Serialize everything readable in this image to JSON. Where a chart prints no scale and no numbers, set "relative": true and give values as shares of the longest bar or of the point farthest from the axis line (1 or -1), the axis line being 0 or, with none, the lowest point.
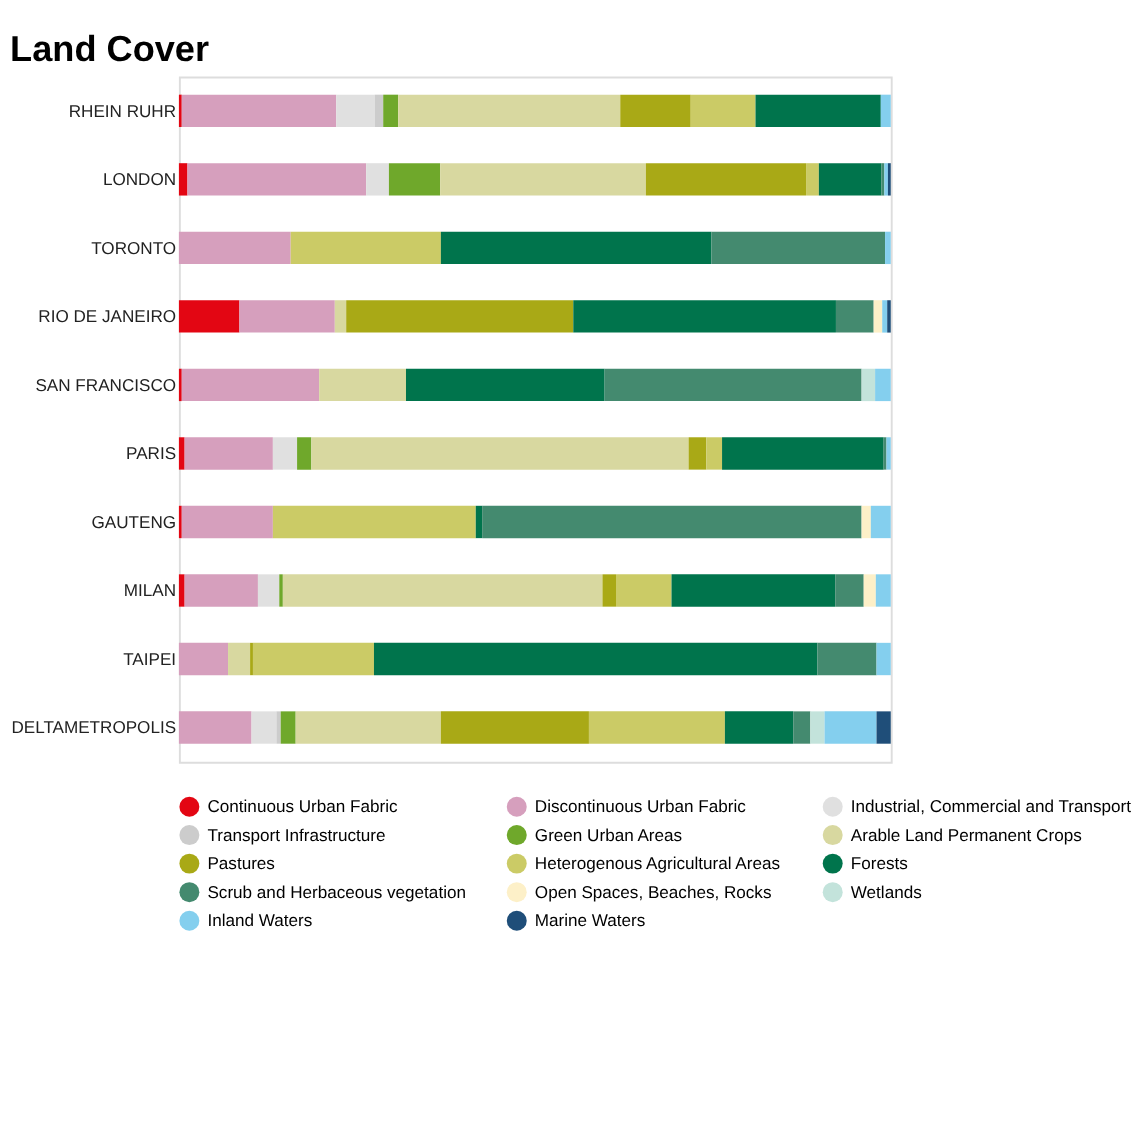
{
  "chart_data": {
    "type": "bar",
    "orientation": "horizontal",
    "stacked": true,
    "relative": true,
    "title": "Land Cover",
    "legend": "bottom",
    "grid": false,
    "marker": "circle",
    "categories": [
      "RHEIN RUHR",
      "LONDON",
      "TORONTO",
      "RIO DE JANEIRO",
      "SAN FRANCISCO",
      "PARIS",
      "GAUTENG",
      "MILAN",
      "TAIPEI",
      "DELTAMETROPOLIS"
    ],
    "series": [
      {
        "name": "Continuous Urban Fabric",
        "color": "#e30613",
        "values": [
          0.004,
          0.012,
          null,
          0.085,
          0.004,
          0.008,
          0.004,
          0.008,
          null,
          null
        ]
      },
      {
        "name": "Discontinuous Urban Fabric",
        "color": "#d69fbd",
        "values": [
          0.217,
          0.251,
          0.157,
          0.134,
          0.193,
          0.124,
          0.128,
          0.103,
          0.069,
          0.102
        ]
      },
      {
        "name": "Industrial, Commercial and Transport",
        "color": "#e0e0e0",
        "values": [
          0.054,
          0.032,
          null,
          null,
          null,
          0.034,
          null,
          0.03,
          null,
          0.035
        ]
      },
      {
        "name": "Transport Infrastructure",
        "color": "#cccccc",
        "values": [
          0.012,
          null,
          null,
          null,
          null,
          null,
          null,
          null,
          null,
          0.006
        ]
      },
      {
        "name": "Green Urban Areas",
        "color": "#6fa82b",
        "values": [
          0.021,
          0.072,
          null,
          null,
          null,
          0.02,
          null,
          0.005,
          null,
          0.021
        ]
      },
      {
        "name": "Arable Land Permanent Crops",
        "color": "#d8d8a0",
        "values": [
          0.312,
          0.289,
          null,
          0.016,
          0.122,
          0.53,
          null,
          0.449,
          0.031,
          0.204
        ]
      },
      {
        "name": "Pastures",
        "color": "#a9a916",
        "values": [
          0.099,
          0.225,
          null,
          0.319,
          null,
          0.025,
          null,
          0.019,
          0.004,
          0.208
        ]
      },
      {
        "name": "Heterogenous Agricultural Areas",
        "color": "#cbcb66",
        "values": [
          0.091,
          0.018,
          0.211,
          null,
          null,
          0.022,
          0.285,
          0.078,
          0.17,
          0.191
        ]
      },
      {
        "name": "Forests",
        "color": "#00744c",
        "values": [
          0.176,
          0.088,
          0.38,
          0.369,
          0.279,
          0.227,
          0.009,
          0.23,
          0.623,
          0.096
        ]
      },
      {
        "name": "Scrub and Herbaceous vegetation",
        "color": "#448a6f",
        "values": [
          null,
          0.004,
          0.244,
          0.053,
          0.361,
          0.004,
          0.533,
          0.04,
          0.083,
          0.024
        ]
      },
      {
        "name": "Open Spaces, Beaches, Rocks",
        "color": "#fdf0c8",
        "values": [
          null,
          null,
          null,
          0.012,
          null,
          null,
          0.013,
          0.017,
          null,
          null
        ]
      },
      {
        "name": "Wetlands",
        "color": "#c3e3db",
        "values": [
          null,
          null,
          null,
          null,
          0.019,
          null,
          null,
          null,
          null,
          0.02
        ]
      },
      {
        "name": "Inland Waters",
        "color": "#84cfee",
        "values": [
          0.014,
          0.005,
          0.008,
          0.007,
          0.022,
          0.006,
          0.028,
          0.021,
          0.02,
          0.073
        ]
      },
      {
        "name": "Marine Waters",
        "color": "#1f4e79",
        "values": [
          null,
          0.004,
          null,
          0.005,
          null,
          null,
          null,
          null,
          null,
          0.02
        ]
      }
    ]
  }
}
